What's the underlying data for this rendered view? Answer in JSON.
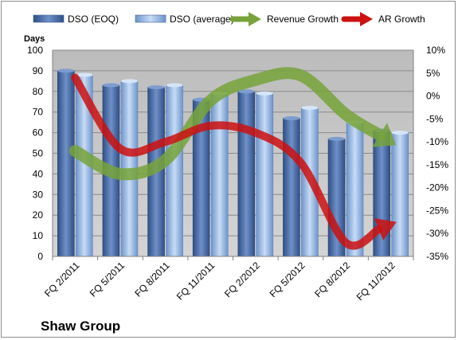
{
  "chart_data": {
    "type": "bar",
    "title": "",
    "company": "Shaw Group",
    "y_left_label": "Days",
    "y_left_lim": [
      0,
      100
    ],
    "y_left_ticks": [
      0,
      10,
      20,
      30,
      40,
      50,
      60,
      70,
      80,
      90,
      100
    ],
    "y_right_lim": [
      -35,
      10
    ],
    "y_right_ticks": [
      -35,
      -30,
      -25,
      -20,
      -15,
      -10,
      -5,
      0,
      5,
      10
    ],
    "y_right_tick_labels": [
      "-35%",
      "-30%",
      "-25%",
      "-20%",
      "-15%",
      "-10%",
      "-5%",
      "0%",
      "5%",
      "10%"
    ],
    "categories": [
      "FQ 2/2011",
      "FQ 5/2011",
      "FQ 8/2011",
      "FQ 11/2011",
      "FQ 2/2012",
      "FQ 5/2012",
      "FQ 8/2012",
      "FQ 11/2012"
    ],
    "grid": true,
    "legend_position": "top",
    "series": [
      {
        "name": "DSO (EOQ)",
        "kind": "bar",
        "axis": "left",
        "color": "#4a6ea8",
        "values": [
          90,
          83,
          82,
          76,
          80,
          67,
          57,
          61
        ]
      },
      {
        "name": "DSO (average)",
        "kind": "bar",
        "axis": "left",
        "color": "#8fb2e0",
        "values": [
          88,
          85,
          83,
          79,
          79,
          72,
          65,
          60
        ]
      },
      {
        "name": "Revenue Growth",
        "kind": "line",
        "axis": "right",
        "color": "#77a33a",
        "values": [
          -12,
          -17,
          -14,
          -1,
          3.5,
          4.5,
          -4,
          -10
        ]
      },
      {
        "name": "AR Growth",
        "kind": "line",
        "axis": "right",
        "color": "#cc1111",
        "values": [
          4,
          -11.5,
          -10,
          -6.5,
          -8,
          -14.5,
          -32,
          -28
        ]
      }
    ]
  }
}
